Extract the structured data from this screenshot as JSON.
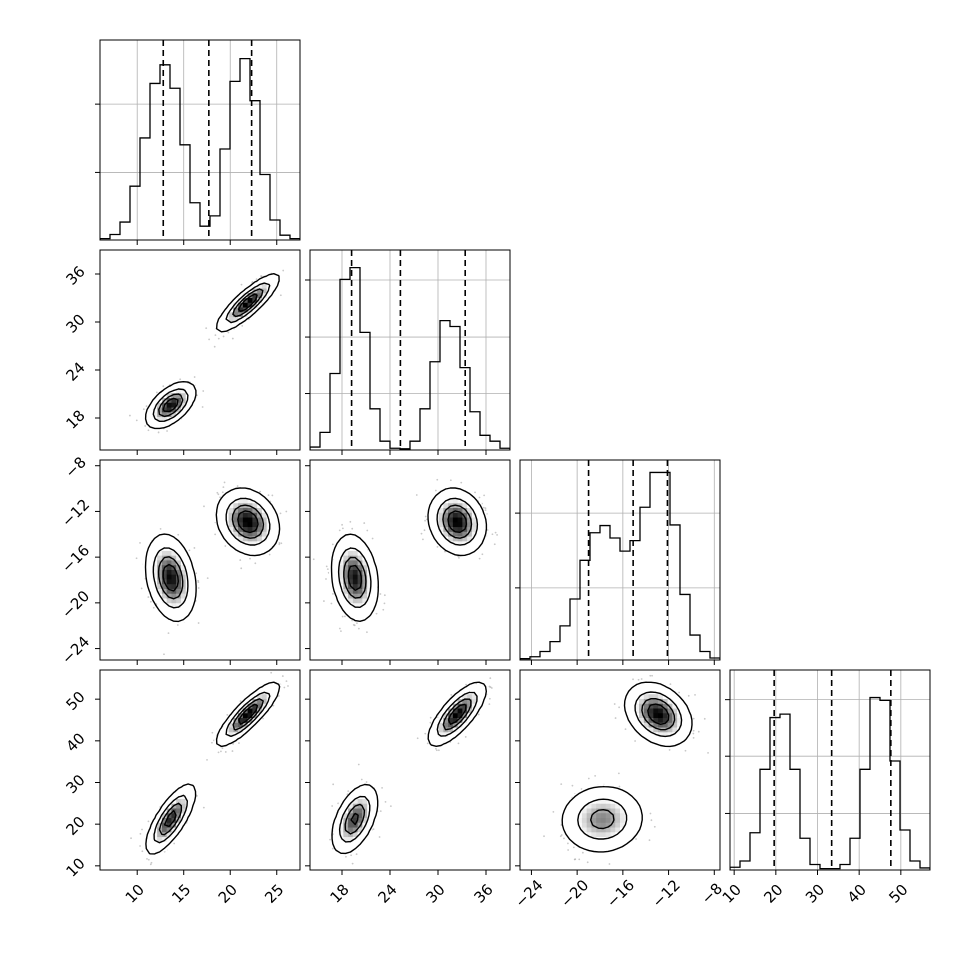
{
  "chart_data": {
    "type": "corner",
    "n_params": 4,
    "quantiles": [
      0.16,
      0.5,
      0.84
    ],
    "params": [
      {
        "range": [
          6,
          27.5
        ],
        "ticks": [
          10,
          15,
          20,
          25
        ],
        "tick_labels": [
          "10",
          "15",
          "20",
          "25"
        ],
        "quantile_lines": [
          12.8,
          17.7,
          22.3
        ],
        "hist": {
          "edges": [
            6.0,
            7.075,
            8.15,
            9.225,
            10.3,
            11.375,
            12.45,
            13.525,
            14.6,
            15.675,
            16.75,
            17.825,
            18.9,
            19.975,
            21.05,
            22.125,
            23.2,
            24.275,
            25.35,
            26.425,
            27.5
          ],
          "counts": [
            0.2,
            0.8,
            2.6,
            7.8,
            14.8,
            22.7,
            25.4,
            22.0,
            13.8,
            5.4,
            2.0,
            3.5,
            13.2,
            23.0,
            26.3,
            20.2,
            9.5,
            2.9,
            0.7,
            0.2
          ],
          "ymax": 29.0,
          "y_grid": [
            9.8,
            19.7
          ]
        }
      },
      {
        "range": [
          14,
          39
        ],
        "ticks": [
          18,
          24,
          30,
          36
        ],
        "tick_labels": [
          "18",
          "24",
          "30",
          "36"
        ],
        "quantile_lines": [
          19.2,
          25.3,
          33.4
        ],
        "hist": {
          "edges": [
            14.0,
            15.25,
            16.5,
            17.75,
            19.0,
            20.25,
            21.5,
            22.75,
            24.0,
            25.25,
            26.5,
            27.75,
            29.0,
            30.25,
            31.5,
            32.75,
            34.0,
            35.25,
            36.5,
            37.75,
            39.0
          ],
          "counts": [
            0.5,
            3.0,
            13.0,
            29.0,
            31.0,
            20.0,
            7.0,
            1.5,
            0.3,
            0.2,
            1.5,
            7.0,
            15.0,
            22.0,
            21.0,
            14.0,
            6.5,
            2.5,
            1.5,
            0.3
          ],
          "ymax": 34.0,
          "y_grid": [
            9.6,
            19.2,
            28.9
          ]
        }
      },
      {
        "range": [
          -25,
          -7.5
        ],
        "ticks": [
          -24,
          -20,
          -16,
          -12,
          -8
        ],
        "tick_labels": [
          "−24",
          "−20",
          "−16",
          "−12",
          "−8"
        ],
        "quantile_lines": [
          -19,
          -15.1,
          -12.1
        ],
        "hist": {
          "edges": [
            -25.0,
            -24.125,
            -23.25,
            -22.375,
            -21.5,
            -20.625,
            -19.75,
            -18.875,
            -18.0,
            -17.125,
            -16.25,
            -15.375,
            -14.5,
            -13.625,
            -12.75,
            -11.875,
            -11.0,
            -10.125,
            -9.25,
            -8.375,
            -7.5
          ],
          "counts": [
            0.2,
            0.5,
            1.3,
            2.8,
            5.2,
            9.3,
            15.2,
            19.4,
            20.5,
            18.6,
            16.6,
            18.2,
            23.3,
            28.6,
            28.6,
            20.6,
            10.0,
            3.8,
            1.3,
            0.3
          ],
          "ymax": 30.5,
          "y_grid": [
            11.0,
            22.4
          ]
        }
      },
      {
        "range": [
          9,
          57
        ],
        "ticks": [
          10,
          20,
          30,
          40,
          50
        ],
        "tick_labels": [
          "10",
          "20",
          "30",
          "40",
          "50"
        ],
        "quantile_lines": [
          19.6,
          33.4,
          47.6
        ],
        "hist": {
          "edges": [
            9.0,
            11.4,
            13.8,
            16.2,
            18.6,
            21.0,
            23.4,
            25.8,
            28.2,
            30.6,
            33.0,
            35.4,
            37.8,
            40.2,
            42.6,
            45.0,
            47.4,
            49.8,
            52.2,
            54.6,
            57.0
          ],
          "counts": [
            0.4,
            1.3,
            5.4,
            14.6,
            22.1,
            22.6,
            14.6,
            4.6,
            0.8,
            0.2,
            0.2,
            0.8,
            4.6,
            14.6,
            25.0,
            24.6,
            15.8,
            5.8,
            1.3,
            0.3
          ],
          "ymax": 29.0,
          "y_grid": [
            8.2,
            16.5,
            24.7
          ]
        }
      }
    ],
    "clusters": [
      {
        "mean": [
          13.6,
          19.6,
          -17.8,
          21.2
        ],
        "sd": [
          1.2,
          1.3,
          1.7,
          3.8
        ],
        "corr": {
          "0-1": 0.55,
          "0-2": -0.25,
          "0-3": 0.75,
          "1-2": -0.2,
          "1-3": 0.5,
          "2-3": 0.05
        }
      },
      {
        "mean": [
          21.9,
          32.4,
          -12.9,
          46.4
        ],
        "sd": [
          1.5,
          1.6,
          1.3,
          3.4
        ],
        "corr": {
          "0-1": 0.85,
          "0-2": -0.2,
          "0-3": 0.85,
          "1-2": -0.15,
          "1-3": 0.75,
          "2-3": -0.3
        }
      }
    ],
    "title": "",
    "xlabel": "",
    "ylabel": "",
    "grid": true
  }
}
